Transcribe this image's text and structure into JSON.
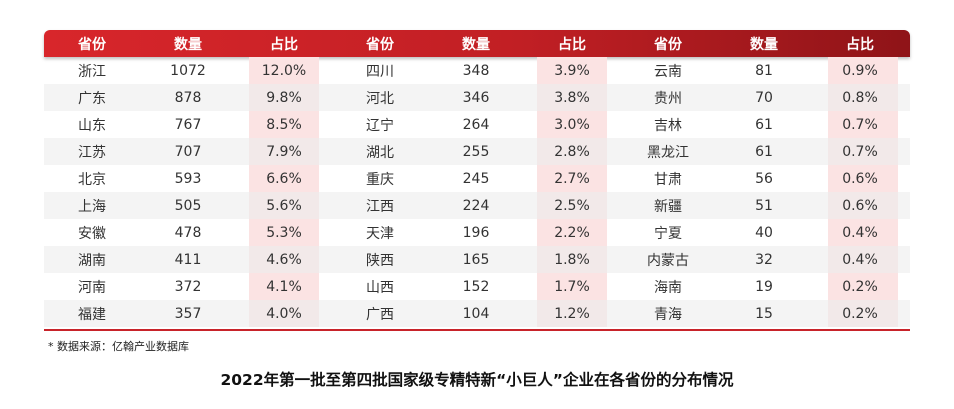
{
  "chart_data": {
    "type": "table",
    "title": "2022年第一批至第四批国家级专精特新“小巨人”企业在各省份的分布情况",
    "source_note": "* 数据来源：亿翰产业数据库",
    "header": [
      "省份",
      "数量",
      "占比",
      "省份",
      "数量",
      "占比",
      "省份",
      "数量",
      "占比"
    ],
    "rows": [
      [
        {
          "province": "浙江",
          "count": "1072",
          "share": "12.0%"
        },
        {
          "province": "四川",
          "count": "348",
          "share": "3.9%"
        },
        {
          "province": "云南",
          "count": "81",
          "share": "0.9%"
        }
      ],
      [
        {
          "province": "广东",
          "count": "878",
          "share": "9.8%"
        },
        {
          "province": "河北",
          "count": "346",
          "share": "3.8%"
        },
        {
          "province": "贵州",
          "count": "70",
          "share": "0.8%"
        }
      ],
      [
        {
          "province": "山东",
          "count": "767",
          "share": "8.5%"
        },
        {
          "province": "辽宁",
          "count": "264",
          "share": "3.0%"
        },
        {
          "province": "吉林",
          "count": "61",
          "share": "0.7%"
        }
      ],
      [
        {
          "province": "江苏",
          "count": "707",
          "share": "7.9%"
        },
        {
          "province": "湖北",
          "count": "255",
          "share": "2.8%"
        },
        {
          "province": "黑龙江",
          "count": "61",
          "share": "0.7%"
        }
      ],
      [
        {
          "province": "北京",
          "count": "593",
          "share": "6.6%"
        },
        {
          "province": "重庆",
          "count": "245",
          "share": "2.7%"
        },
        {
          "province": "甘肃",
          "count": "56",
          "share": "0.6%"
        }
      ],
      [
        {
          "province": "上海",
          "count": "505",
          "share": "5.6%"
        },
        {
          "province": "江西",
          "count": "224",
          "share": "2.5%"
        },
        {
          "province": "新疆",
          "count": "51",
          "share": "0.6%"
        }
      ],
      [
        {
          "province": "安徽",
          "count": "478",
          "share": "5.3%"
        },
        {
          "province": "天津",
          "count": "196",
          "share": "2.2%"
        },
        {
          "province": "宁夏",
          "count": "40",
          "share": "0.4%"
        }
      ],
      [
        {
          "province": "湖南",
          "count": "411",
          "share": "4.6%"
        },
        {
          "province": "陕西",
          "count": "165",
          "share": "1.8%"
        },
        {
          "province": "内蒙古",
          "count": "32",
          "share": "0.4%"
        }
      ],
      [
        {
          "province": "河南",
          "count": "372",
          "share": "4.1%"
        },
        {
          "province": "山西",
          "count": "152",
          "share": "1.7%"
        },
        {
          "province": "海南",
          "count": "19",
          "share": "0.2%"
        }
      ],
      [
        {
          "province": "福建",
          "count": "357",
          "share": "4.0%"
        },
        {
          "province": "广西",
          "count": "104",
          "share": "1.2%"
        },
        {
          "province": "青海",
          "count": "15",
          "share": "0.2%"
        }
      ]
    ]
  },
  "colors": {
    "header_start": "#d8262b",
    "header_end": "#8f1418",
    "share_column_shade": "#fbe3e3",
    "accent_line": "#c8232a"
  }
}
